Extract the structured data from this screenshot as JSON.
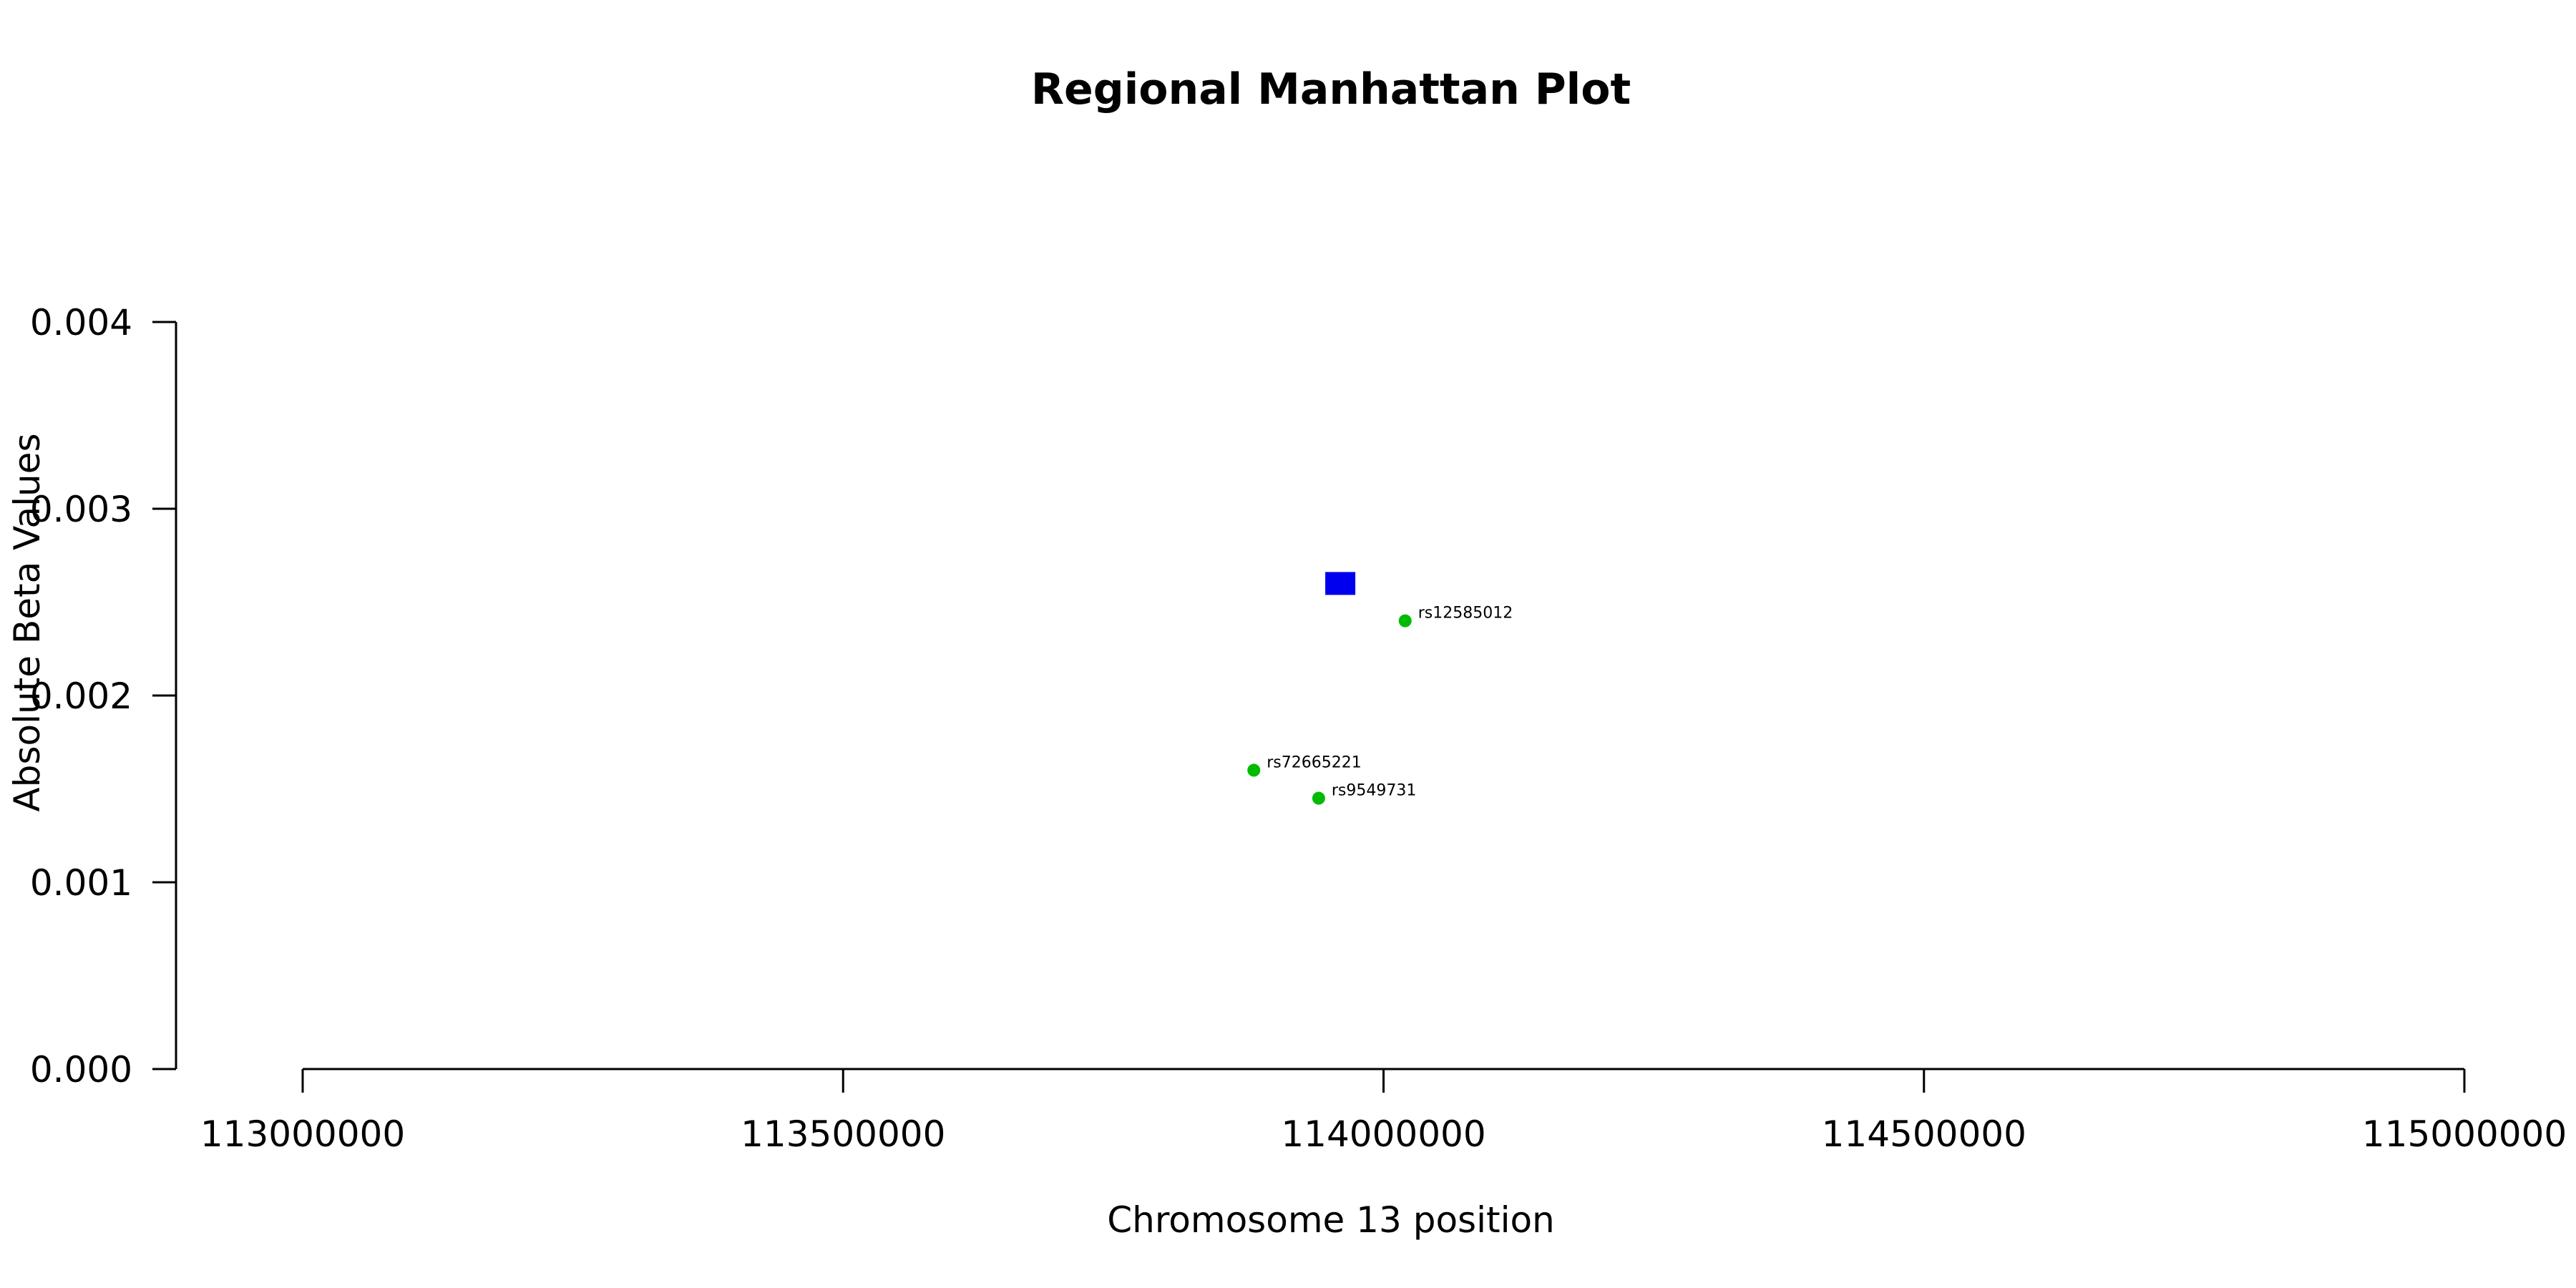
{
  "chart_data": {
    "type": "scatter",
    "title": "Regional Manhattan Plot",
    "xlabel": "Chromosome 13 position",
    "ylabel": "Absolute Beta Values",
    "xlim": [
      113000000,
      115000000
    ],
    "ylim": [
      0,
      0.004
    ],
    "x_ticks": [
      113000000,
      113500000,
      114000000,
      114500000,
      115000000
    ],
    "x_tick_labels": [
      "113000000",
      "113500000",
      "114000000",
      "114500000",
      "115000000"
    ],
    "y_ticks": [
      0,
      0.001,
      0.002,
      0.003,
      0.004
    ],
    "y_tick_labels": [
      "0.000",
      "0.001",
      "0.002",
      "0.003",
      "0.004"
    ],
    "grid": false,
    "colors": {
      "lead": "#0000ee",
      "snp": "#00bb00"
    },
    "lead_point": {
      "x": 113960000,
      "y": 0.0026,
      "marker": "square"
    },
    "points": [
      {
        "label": "rs12585012",
        "x": 114020000,
        "y": 0.0024
      },
      {
        "label": "rs72665221",
        "x": 113880000,
        "y": 0.0016
      },
      {
        "label": "rs9549731",
        "x": 113940000,
        "y": 0.00145
      }
    ]
  }
}
